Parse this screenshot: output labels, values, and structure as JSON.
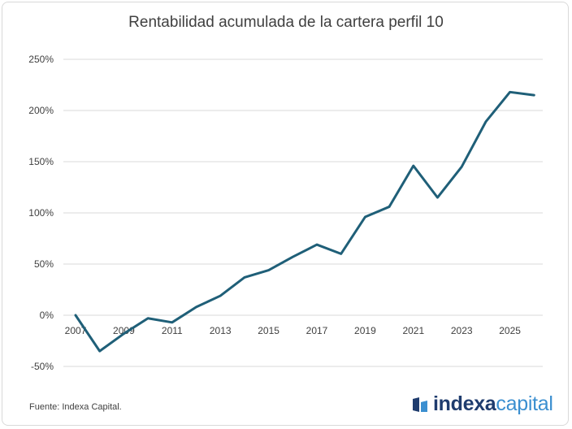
{
  "chart_data": {
    "type": "line",
    "title": "Rentabilidad acumulada de la cartera perfil 10",
    "xlabel": "",
    "ylabel": "",
    "x": [
      2007,
      2008,
      2009,
      2010,
      2011,
      2012,
      2013,
      2014,
      2015,
      2016,
      2017,
      2018,
      2019,
      2020,
      2021,
      2022,
      2023,
      2024,
      2025,
      2026
    ],
    "x_tick_labels": [
      "2007",
      "2009",
      "2011",
      "2013",
      "2015",
      "2017",
      "2019",
      "2021",
      "2023",
      "2025"
    ],
    "y_tick_labels": [
      "250%",
      "200%",
      "150%",
      "100%",
      "50%",
      "0%",
      "-50%"
    ],
    "ylim": [
      -50,
      250
    ],
    "y_unit": "%",
    "grid": true,
    "series": [
      {
        "values": [
          0,
          -35,
          -18,
          -3,
          -7,
          8,
          19,
          37,
          44,
          57,
          69,
          60,
          96,
          106,
          146,
          115,
          145,
          189,
          218,
          215
        ],
        "color": "#1f5f78"
      }
    ]
  },
  "footer": {
    "source": "Fuente: Indexa Capital.",
    "logo_part1": "indexa",
    "logo_part2": "capital"
  },
  "colors": {
    "line": "#1f5f78",
    "grid": "#d9d9d9",
    "logo_dark": "#1f3c6e",
    "logo_light": "#3b8fd0"
  }
}
